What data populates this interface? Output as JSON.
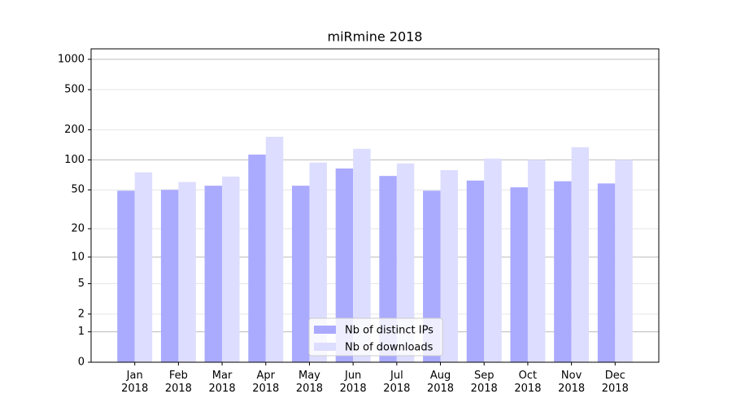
{
  "chart_data": {
    "type": "bar",
    "title": "miRmine 2018",
    "scale": "log1p",
    "categories": [
      "Jan\n2018",
      "Feb\n2018",
      "Mar\n2018",
      "Apr\n2018",
      "May\n2018",
      "Jun\n2018",
      "Jul\n2018",
      "Aug\n2018",
      "Sep\n2018",
      "Oct\n2018",
      "Nov\n2018",
      "Dec\n2018"
    ],
    "series": [
      {
        "name": "Nb of distinct IPs",
        "color": "#aaaaff",
        "values": [
          49,
          50,
          55,
          113,
          55,
          82,
          69,
          49,
          62,
          53,
          61,
          58
        ]
      },
      {
        "name": "Nb of downloads",
        "color": "#ddddff",
        "values": [
          75,
          60,
          68,
          170,
          94,
          129,
          92,
          79,
          103,
          100,
          134,
          100
        ]
      }
    ],
    "ylim": [
      0,
      1270
    ],
    "yticks": [
      0,
      1,
      2,
      5,
      10,
      20,
      50,
      100,
      200,
      500,
      1000
    ],
    "grid": true,
    "legend": "lower center"
  }
}
